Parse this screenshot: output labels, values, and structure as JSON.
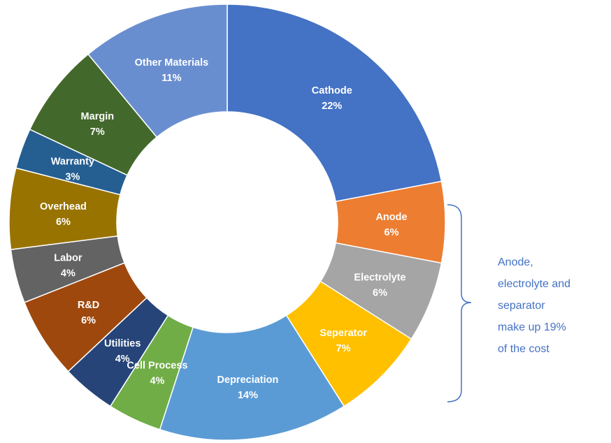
{
  "chart_data": {
    "type": "pie",
    "subtype": "donut",
    "slices": [
      {
        "label": "Cathode",
        "value": 22,
        "value_label": "22%",
        "color": "#4472C4"
      },
      {
        "label": "Anode",
        "value": 6,
        "value_label": "6%",
        "color": "#ED7D31"
      },
      {
        "label": "Electrolyte",
        "value": 6,
        "value_label": "6%",
        "color": "#A5A5A5"
      },
      {
        "label": "Seperator",
        "value": 7,
        "value_label": "7%",
        "color": "#FFC000"
      },
      {
        "label": "Depreciation",
        "value": 14,
        "value_label": "14%",
        "color": "#5B9BD5"
      },
      {
        "label": "Cell Process",
        "value": 4,
        "value_label": "4%",
        "color": "#70AD47"
      },
      {
        "label": "Utilities",
        "value": 4,
        "value_label": "4%",
        "color": "#264478"
      },
      {
        "label": "R&D",
        "value": 6,
        "value_label": "6%",
        "color": "#9E480E"
      },
      {
        "label": "Labor",
        "value": 4,
        "value_label": "4%",
        "color": "#636363"
      },
      {
        "label": "Overhead",
        "value": 6,
        "value_label": "6%",
        "color": "#997300"
      },
      {
        "label": "Warranty",
        "value": 3,
        "value_label": "3%",
        "color": "#255E91"
      },
      {
        "label": "Margin",
        "value": 7,
        "value_label": "7%",
        "color": "#43682B"
      },
      {
        "label": "Other Materials",
        "value": 11,
        "value_label": "11%",
        "color": "#698ED0"
      }
    ],
    "annotation": {
      "lines": [
        "Anode,",
        "electrolyte and",
        "separator",
        "make up 19%",
        "of the cost"
      ],
      "color": "#4472C4",
      "bracket_spans": [
        "Anode",
        "Electrolyte",
        "Seperator"
      ]
    }
  }
}
